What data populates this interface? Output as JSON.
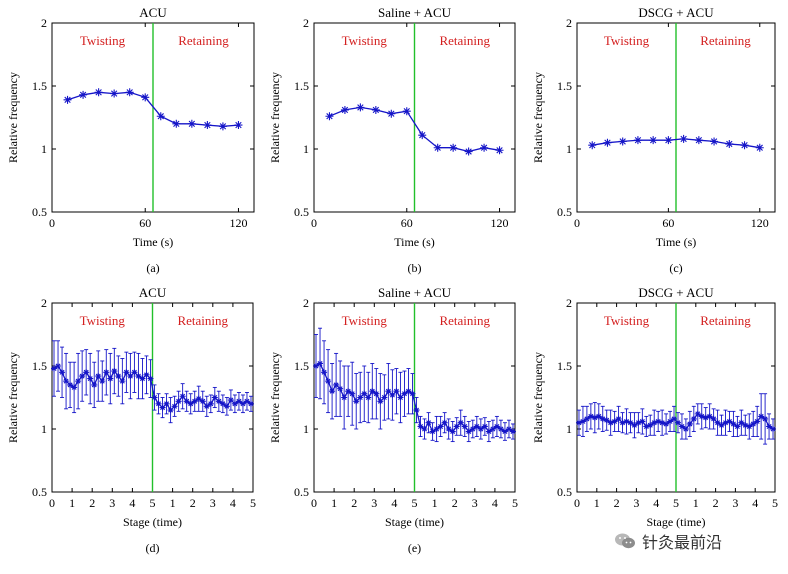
{
  "colors": {
    "series": "#1515c8",
    "divider": "#22c02a",
    "phase_label": "#d42020",
    "axis": "#000000"
  },
  "watermark": {
    "icon": "wechat-icon",
    "text": "针灸最前沿"
  },
  "chart_data": [
    {
      "type": "line",
      "title": "ACU",
      "panel_label": "(a)",
      "xlabel": "Time (s)",
      "ylabel": "Relative frequency",
      "xlim": [
        0,
        130
      ],
      "ylim": [
        0.5,
        2
      ],
      "xticks": [
        0,
        60,
        120
      ],
      "yticks": [
        0.5,
        1,
        1.5,
        2
      ],
      "ytick_labels": [
        "0.5",
        "1",
        "1.5",
        "2"
      ],
      "divider_x": 65,
      "phase_labels": [
        "Twisting",
        "Retaining"
      ],
      "x": [
        10,
        20,
        30,
        40,
        50,
        60,
        70,
        80,
        90,
        100,
        110,
        120
      ],
      "values": [
        1.39,
        1.43,
        1.45,
        1.44,
        1.45,
        1.41,
        1.26,
        1.2,
        1.2,
        1.19,
        1.18,
        1.19
      ]
    },
    {
      "type": "line",
      "title": "Saline + ACU",
      "panel_label": "(b)",
      "xlabel": "Time (s)",
      "ylabel": "Relative frequency",
      "xlim": [
        0,
        130
      ],
      "ylim": [
        0.5,
        2
      ],
      "xticks": [
        0,
        60,
        120
      ],
      "yticks": [
        0.5,
        1,
        1.5,
        2
      ],
      "ytick_labels": [
        "0.5",
        "1",
        "1.5",
        "2"
      ],
      "divider_x": 65,
      "phase_labels": [
        "Twisting",
        "Retaining"
      ],
      "x": [
        10,
        20,
        30,
        40,
        50,
        60,
        70,
        80,
        90,
        100,
        110,
        120
      ],
      "values": [
        1.26,
        1.31,
        1.33,
        1.31,
        1.28,
        1.3,
        1.11,
        1.01,
        1.01,
        0.98,
        1.01,
        0.99
      ]
    },
    {
      "type": "line",
      "title": "DSCG + ACU",
      "panel_label": "(c)",
      "xlabel": "Time (s)",
      "ylabel": "Relative frequency",
      "xlim": [
        0,
        130
      ],
      "ylim": [
        0.5,
        2
      ],
      "xticks": [
        0,
        60,
        120
      ],
      "yticks": [
        0.5,
        1,
        1.5,
        2
      ],
      "ytick_labels": [
        "0.5",
        "1",
        "1.5",
        "2"
      ],
      "divider_x": 65,
      "phase_labels": [
        "Twisting",
        "Retaining"
      ],
      "x": [
        10,
        20,
        30,
        40,
        50,
        60,
        70,
        80,
        90,
        100,
        110,
        120
      ],
      "values": [
        1.03,
        1.05,
        1.06,
        1.07,
        1.07,
        1.07,
        1.08,
        1.07,
        1.06,
        1.04,
        1.03,
        1.01
      ]
    },
    {
      "type": "line",
      "title": "ACU",
      "panel_label": "(d)",
      "xlabel": "Stage (time)",
      "ylabel": "Relative frequency",
      "xlim": [
        0,
        10
      ],
      "ylim": [
        0.5,
        2
      ],
      "xticks": [
        0,
        1,
        2,
        3,
        4,
        5,
        6,
        7,
        8,
        9,
        10
      ],
      "xtick_labels": [
        "0",
        "1",
        "2",
        "3",
        "4",
        "5",
        "1",
        "2",
        "3",
        "4",
        "5"
      ],
      "yticks": [
        0.5,
        1,
        1.5,
        2
      ],
      "ytick_labels": [
        "0.5",
        "1",
        "1.5",
        "2"
      ],
      "divider_x": 5,
      "phase_labels": [
        "Twisting",
        "Retaining"
      ],
      "x": [
        0.1,
        0.3,
        0.5,
        0.7,
        0.9,
        1.1,
        1.3,
        1.5,
        1.7,
        1.9,
        2.1,
        2.3,
        2.5,
        2.7,
        2.9,
        3.1,
        3.3,
        3.5,
        3.7,
        3.9,
        4.1,
        4.3,
        4.5,
        4.7,
        4.9,
        5.1,
        5.3,
        5.5,
        5.7,
        5.9,
        6.1,
        6.3,
        6.5,
        6.7,
        6.9,
        7.1,
        7.3,
        7.5,
        7.7,
        7.9,
        8.1,
        8.3,
        8.5,
        8.7,
        8.9,
        9.1,
        9.3,
        9.5,
        9.7,
        9.9
      ],
      "values": [
        1.48,
        1.5,
        1.45,
        1.38,
        1.35,
        1.33,
        1.38,
        1.42,
        1.45,
        1.4,
        1.35,
        1.42,
        1.38,
        1.45,
        1.4,
        1.46,
        1.42,
        1.38,
        1.45,
        1.42,
        1.45,
        1.42,
        1.4,
        1.43,
        1.4,
        1.25,
        1.2,
        1.17,
        1.2,
        1.15,
        1.18,
        1.22,
        1.26,
        1.22,
        1.2,
        1.22,
        1.24,
        1.22,
        1.18,
        1.2,
        1.25,
        1.22,
        1.2,
        1.18,
        1.23,
        1.2,
        1.22,
        1.2,
        1.22,
        1.2
      ],
      "errors": [
        0.22,
        0.2,
        0.2,
        0.22,
        0.18,
        0.2,
        0.22,
        0.2,
        0.18,
        0.2,
        0.18,
        0.2,
        0.16,
        0.18,
        0.2,
        0.18,
        0.16,
        0.18,
        0.16,
        0.18,
        0.16,
        0.18,
        0.16,
        0.15,
        0.15,
        0.1,
        0.08,
        0.08,
        0.08,
        0.1,
        0.08,
        0.08,
        0.1,
        0.08,
        0.08,
        0.08,
        0.1,
        0.08,
        0.08,
        0.07,
        0.08,
        0.08,
        0.07,
        0.07,
        0.08,
        0.07,
        0.07,
        0.07,
        0.07,
        0.06
      ]
    },
    {
      "type": "line",
      "title": "Saline + ACU",
      "panel_label": "(e)",
      "xlabel": "Stage (time)",
      "ylabel": "Relative frequency",
      "xlim": [
        0,
        10
      ],
      "ylim": [
        0.5,
        2
      ],
      "xticks": [
        0,
        1,
        2,
        3,
        4,
        5,
        6,
        7,
        8,
        9,
        10
      ],
      "xtick_labels": [
        "0",
        "1",
        "2",
        "3",
        "4",
        "5",
        "1",
        "2",
        "3",
        "4",
        "5"
      ],
      "yticks": [
        0.5,
        1,
        1.5,
        2
      ],
      "ytick_labels": [
        "0.5",
        "1",
        "1.5",
        "2"
      ],
      "divider_x": 5,
      "phase_labels": [
        "Twisting",
        "Retaining"
      ],
      "x": [
        0.1,
        0.3,
        0.5,
        0.7,
        0.9,
        1.1,
        1.3,
        1.5,
        1.7,
        1.9,
        2.1,
        2.3,
        2.5,
        2.7,
        2.9,
        3.1,
        3.3,
        3.5,
        3.7,
        3.9,
        4.1,
        4.3,
        4.5,
        4.7,
        4.9,
        5.1,
        5.3,
        5.5,
        5.7,
        5.9,
        6.1,
        6.3,
        6.5,
        6.7,
        6.9,
        7.1,
        7.3,
        7.5,
        7.7,
        7.9,
        8.1,
        8.3,
        8.5,
        8.7,
        8.9,
        9.1,
        9.3,
        9.5,
        9.7,
        9.9
      ],
      "values": [
        1.5,
        1.52,
        1.45,
        1.38,
        1.3,
        1.35,
        1.32,
        1.25,
        1.3,
        1.28,
        1.22,
        1.25,
        1.28,
        1.25,
        1.3,
        1.28,
        1.22,
        1.25,
        1.3,
        1.27,
        1.3,
        1.25,
        1.28,
        1.3,
        1.28,
        1.15,
        1.02,
        1.0,
        1.05,
        0.98,
        1.0,
        1.02,
        1.05,
        1.0,
        0.98,
        1.02,
        1.05,
        1.02,
        0.98,
        1.0,
        1.02,
        1.0,
        1.02,
        0.98,
        1.0,
        1.02,
        1.0,
        0.98,
        1.0,
        0.98
      ],
      "errors": [
        0.25,
        0.28,
        0.25,
        0.25,
        0.22,
        0.25,
        0.22,
        0.25,
        0.2,
        0.25,
        0.22,
        0.2,
        0.22,
        0.2,
        0.22,
        0.2,
        0.22,
        0.18,
        0.22,
        0.2,
        0.18,
        0.2,
        0.18,
        0.18,
        0.16,
        0.1,
        0.08,
        0.08,
        0.08,
        0.07,
        0.1,
        0.08,
        0.08,
        0.08,
        0.08,
        0.07,
        0.1,
        0.08,
        0.08,
        0.07,
        0.08,
        0.08,
        0.07,
        0.08,
        0.07,
        0.08,
        0.07,
        0.07,
        0.07,
        0.06
      ]
    },
    {
      "type": "line",
      "title": "DSCG + ACU",
      "panel_label": "",
      "xlabel": "Stage (time)",
      "ylabel": "Relative frequency",
      "xlim": [
        0,
        10
      ],
      "ylim": [
        0.5,
        2
      ],
      "xticks": [
        0,
        1,
        2,
        3,
        4,
        5,
        6,
        7,
        8,
        9,
        10
      ],
      "xtick_labels": [
        "0",
        "1",
        "2",
        "3",
        "4",
        "5",
        "1",
        "2",
        "3",
        "4",
        "5"
      ],
      "yticks": [
        0.5,
        1,
        1.5,
        2
      ],
      "ytick_labels": [
        "0.5",
        "1",
        "1.5",
        "2"
      ],
      "divider_x": 5,
      "phase_labels": [
        "Twisting",
        "Retaining"
      ],
      "x": [
        0.1,
        0.3,
        0.5,
        0.7,
        0.9,
        1.1,
        1.3,
        1.5,
        1.7,
        1.9,
        2.1,
        2.3,
        2.5,
        2.7,
        2.9,
        3.1,
        3.3,
        3.5,
        3.7,
        3.9,
        4.1,
        4.3,
        4.5,
        4.7,
        4.9,
        5.1,
        5.3,
        5.5,
        5.7,
        5.9,
        6.1,
        6.3,
        6.5,
        6.7,
        6.9,
        7.1,
        7.3,
        7.5,
        7.7,
        7.9,
        8.1,
        8.3,
        8.5,
        8.7,
        8.9,
        9.1,
        9.3,
        9.5,
        9.7,
        9.9
      ],
      "values": [
        1.05,
        1.06,
        1.08,
        1.1,
        1.09,
        1.1,
        1.08,
        1.07,
        1.05,
        1.06,
        1.08,
        1.05,
        1.06,
        1.05,
        1.03,
        1.05,
        1.06,
        1.02,
        1.03,
        1.05,
        1.06,
        1.05,
        1.04,
        1.06,
        1.08,
        1.05,
        1.02,
        1.0,
        1.04,
        1.08,
        1.12,
        1.1,
        1.09,
        1.1,
        1.08,
        1.05,
        1.03,
        1.05,
        1.06,
        1.04,
        1.02,
        1.05,
        1.03,
        1.02,
        1.04,
        1.06,
        1.1,
        1.08,
        1.02,
        1.0
      ],
      "errors": [
        0.1,
        0.12,
        0.1,
        0.1,
        0.12,
        0.1,
        0.1,
        0.08,
        0.1,
        0.08,
        0.1,
        0.08,
        0.1,
        0.08,
        0.1,
        0.08,
        0.1,
        0.08,
        0.08,
        0.1,
        0.08,
        0.1,
        0.08,
        0.08,
        0.1,
        0.08,
        0.1,
        0.08,
        0.1,
        0.1,
        0.08,
        0.1,
        0.08,
        0.1,
        0.08,
        0.1,
        0.08,
        0.1,
        0.08,
        0.1,
        0.08,
        0.1,
        0.08,
        0.1,
        0.1,
        0.12,
        0.18,
        0.2,
        0.1,
        0.08
      ]
    }
  ]
}
